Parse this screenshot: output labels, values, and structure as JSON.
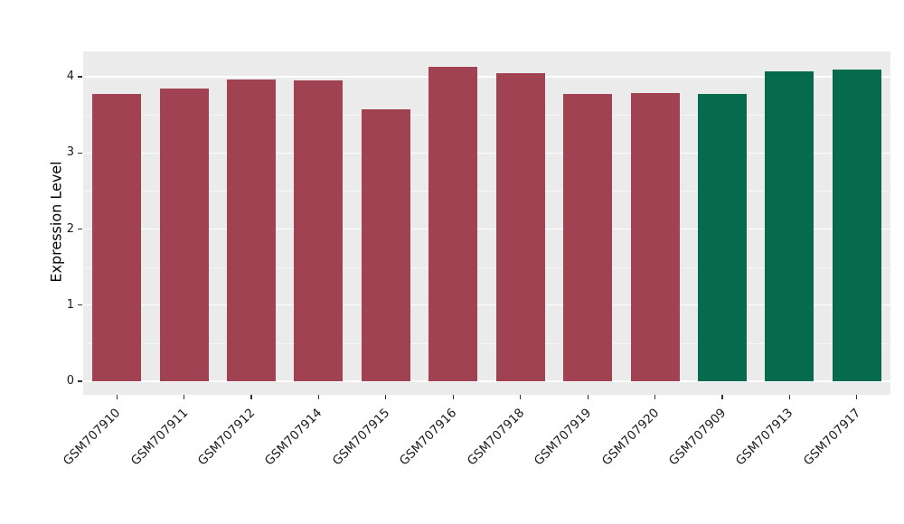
{
  "chart_data": {
    "type": "bar",
    "title": "",
    "xlabel": "",
    "ylabel": "Expression Level",
    "ylim": [
      0,
      4.33
    ],
    "yticks": [
      0,
      1,
      2,
      3,
      4
    ],
    "yticks_minor": [
      0.5,
      1.5,
      2.5,
      3.5
    ],
    "grid": true,
    "legend": "none",
    "panel_bg": "#EBEBEB",
    "grid_major_color": "#FFFFFF",
    "categories": [
      "GSM707910",
      "GSM707911",
      "GSM707912",
      "GSM707914",
      "GSM707915",
      "GSM707916",
      "GSM707918",
      "GSM707919",
      "GSM707920",
      "GSM707909",
      "GSM707913",
      "GSM707917"
    ],
    "values": [
      3.78,
      3.85,
      3.97,
      3.95,
      3.57,
      4.13,
      4.05,
      3.77,
      3.79,
      3.78,
      4.07,
      4.1
    ],
    "bar_colors": [
      "#A04252",
      "#A04252",
      "#A04252",
      "#A04252",
      "#A04252",
      "#A04252",
      "#A04252",
      "#A04252",
      "#A04252",
      "#066B4C",
      "#066B4C",
      "#066B4C"
    ],
    "group_colors": {
      "red_group": "#A04252",
      "green_group": "#066B4C"
    }
  }
}
